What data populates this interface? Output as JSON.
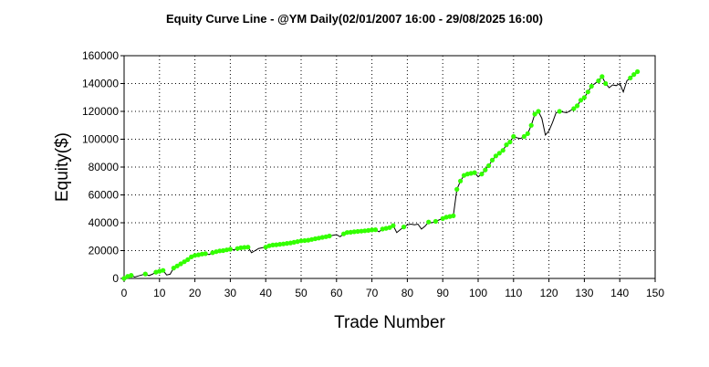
{
  "chart_data": {
    "type": "line",
    "title": "Equity Curve Line - @YM Daily(02/01/2007 16:00 - 29/08/2025 16:00)",
    "xlabel": "Trade Number",
    "ylabel": "Equity($)",
    "xlim": [
      0,
      150
    ],
    "ylim": [
      0,
      160000
    ],
    "xticks": [
      0,
      10,
      20,
      30,
      40,
      50,
      60,
      70,
      80,
      90,
      100,
      110,
      120,
      130,
      140,
      150
    ],
    "yticks": [
      0,
      20000,
      40000,
      60000,
      80000,
      100000,
      120000,
      140000,
      160000
    ],
    "grid": true,
    "legend": "none",
    "colors": {
      "line": "#000000",
      "marker": "#33ff00",
      "grid": "#000000"
    },
    "series": [
      {
        "x": [
          0,
          1,
          2,
          3,
          4,
          5,
          6,
          7,
          8,
          9,
          10,
          11,
          12,
          13,
          14,
          15,
          16,
          17,
          18,
          19,
          20,
          21,
          22,
          23,
          24,
          25,
          26,
          27,
          28,
          29,
          30,
          31,
          32,
          33,
          34,
          35,
          36,
          37,
          38,
          39,
          40,
          41,
          42,
          43,
          44,
          45,
          46,
          47,
          48,
          49,
          50,
          51,
          52,
          53,
          54,
          55,
          56,
          57,
          58,
          59,
          60,
          61,
          62,
          63,
          64,
          65,
          66,
          67,
          68,
          69,
          70,
          71,
          72,
          73,
          74,
          75,
          76,
          77,
          78,
          79,
          80,
          81,
          82,
          83,
          84,
          85,
          86,
          87,
          88,
          89,
          90,
          91,
          92,
          93,
          94,
          95,
          96,
          97,
          98,
          99,
          100,
          101,
          102,
          103,
          104,
          105,
          106,
          107,
          108,
          109,
          110,
          111,
          112,
          113,
          114,
          115,
          116,
          117,
          118,
          119,
          120,
          121,
          122,
          123,
          124,
          125,
          126,
          127,
          128,
          129,
          130,
          131,
          132,
          133,
          134,
          135,
          136,
          137,
          138,
          139,
          140,
          141,
          142,
          143,
          144,
          145
        ],
        "y": [
          0,
          1500,
          2200,
          1000,
          1800,
          2500,
          3200,
          2000,
          3000,
          4500,
          5200,
          5800,
          2500,
          3000,
          7500,
          9000,
          10500,
          12000,
          13500,
          15500,
          16500,
          17000,
          17500,
          17800,
          17200,
          18500,
          19200,
          19800,
          20000,
          20500,
          21000,
          20500,
          21500,
          22000,
          22300,
          22500,
          18500,
          20000,
          21500,
          22000,
          22500,
          23500,
          24000,
          24200,
          24500,
          24800,
          25200,
          25500,
          26000,
          26500,
          27000,
          27200,
          27500,
          28000,
          28500,
          29000,
          29500,
          30000,
          30500,
          31000,
          31500,
          30000,
          32000,
          33000,
          33200,
          33500,
          33800,
          34000,
          34200,
          34500,
          34800,
          35000,
          33500,
          35500,
          36000,
          36500,
          38000,
          33000,
          35000,
          37000,
          38500,
          39000,
          38500,
          39000,
          35500,
          37500,
          40500,
          40000,
          41000,
          42000,
          43000,
          44000,
          44500,
          45000,
          64000,
          70000,
          74000,
          75000,
          75500,
          76000,
          73000,
          75000,
          78000,
          81000,
          85000,
          88000,
          90000,
          92000,
          96000,
          98000,
          102000,
          101000,
          100500,
          102000,
          104000,
          110000,
          118000,
          120000,
          115000,
          103000,
          106000,
          112000,
          119000,
          120000,
          119500,
          119000,
          120500,
          122000,
          124000,
          128000,
          130000,
          134000,
          138000,
          140000,
          142000,
          145000,
          140000,
          137000,
          139000,
          138500,
          140000,
          134000,
          142000,
          144000,
          146500,
          148500
        ],
        "markers": [
          1,
          1,
          1,
          0,
          0,
          0,
          1,
          0,
          0,
          1,
          1,
          1,
          0,
          0,
          1,
          1,
          1,
          1,
          1,
          1,
          1,
          1,
          1,
          1,
          0,
          1,
          1,
          1,
          1,
          1,
          1,
          0,
          1,
          1,
          1,
          1,
          0,
          0,
          0,
          0,
          1,
          1,
          1,
          1,
          1,
          1,
          1,
          1,
          1,
          1,
          1,
          1,
          1,
          1,
          1,
          1,
          1,
          1,
          1,
          0,
          0,
          0,
          1,
          1,
          1,
          1,
          1,
          1,
          1,
          1,
          1,
          1,
          0,
          1,
          1,
          1,
          1,
          0,
          0,
          1,
          0,
          0,
          0,
          0,
          0,
          0,
          1,
          0,
          1,
          0,
          1,
          1,
          1,
          1,
          1,
          1,
          1,
          1,
          1,
          1,
          0,
          1,
          1,
          1,
          1,
          1,
          1,
          1,
          1,
          1,
          1,
          0,
          0,
          1,
          1,
          1,
          1,
          1,
          0,
          0,
          0,
          0,
          0,
          1,
          0,
          0,
          0,
          1,
          1,
          1,
          1,
          1,
          1,
          0,
          1,
          1,
          1,
          0,
          0,
          0,
          0,
          0,
          0,
          1,
          1,
          1
        ]
      }
    ]
  }
}
